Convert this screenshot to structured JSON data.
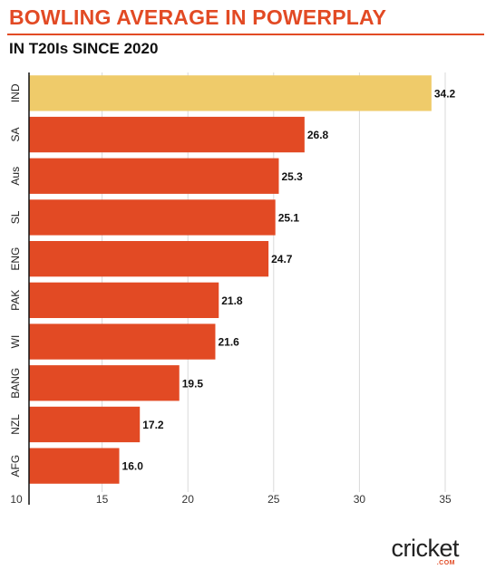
{
  "header": {
    "title": "BOWLING AVERAGE IN POWERPLAY",
    "subtitle": "IN T20Is SINCE 2020"
  },
  "logo": {
    "main": "cricket",
    "sub": ".COM"
  },
  "colors": {
    "highlight": "#efcb6a",
    "bar": "#e24a24",
    "title": "#e24a24",
    "grid": "#d9d9d9"
  },
  "chart_data": {
    "type": "bar",
    "orientation": "horizontal",
    "categories": [
      "IND",
      "SA",
      "Aus",
      "SL",
      "ENG",
      "PAK",
      "WI",
      "BANG",
      "NZL",
      "AFG"
    ],
    "values": [
      34.2,
      26.8,
      25.3,
      25.1,
      24.7,
      21.8,
      21.6,
      19.5,
      17.2,
      16.0
    ],
    "value_labels": [
      "34.2",
      "26.8",
      "25.3",
      "25.1",
      "24.7",
      "21.8",
      "21.6",
      "19.5",
      "17.2",
      "16.0"
    ],
    "highlight_index": 0,
    "xlim": [
      10,
      35
    ],
    "xticks": [
      10,
      15,
      20,
      25,
      30,
      35
    ],
    "xtick_labels": [
      "10",
      "15",
      "20",
      "25",
      "30",
      "35"
    ],
    "grid": true,
    "title": "BOWLING AVERAGE IN POWERPLAY",
    "subtitle": "IN T20Is SINCE 2020",
    "xlabel": "",
    "ylabel": ""
  }
}
